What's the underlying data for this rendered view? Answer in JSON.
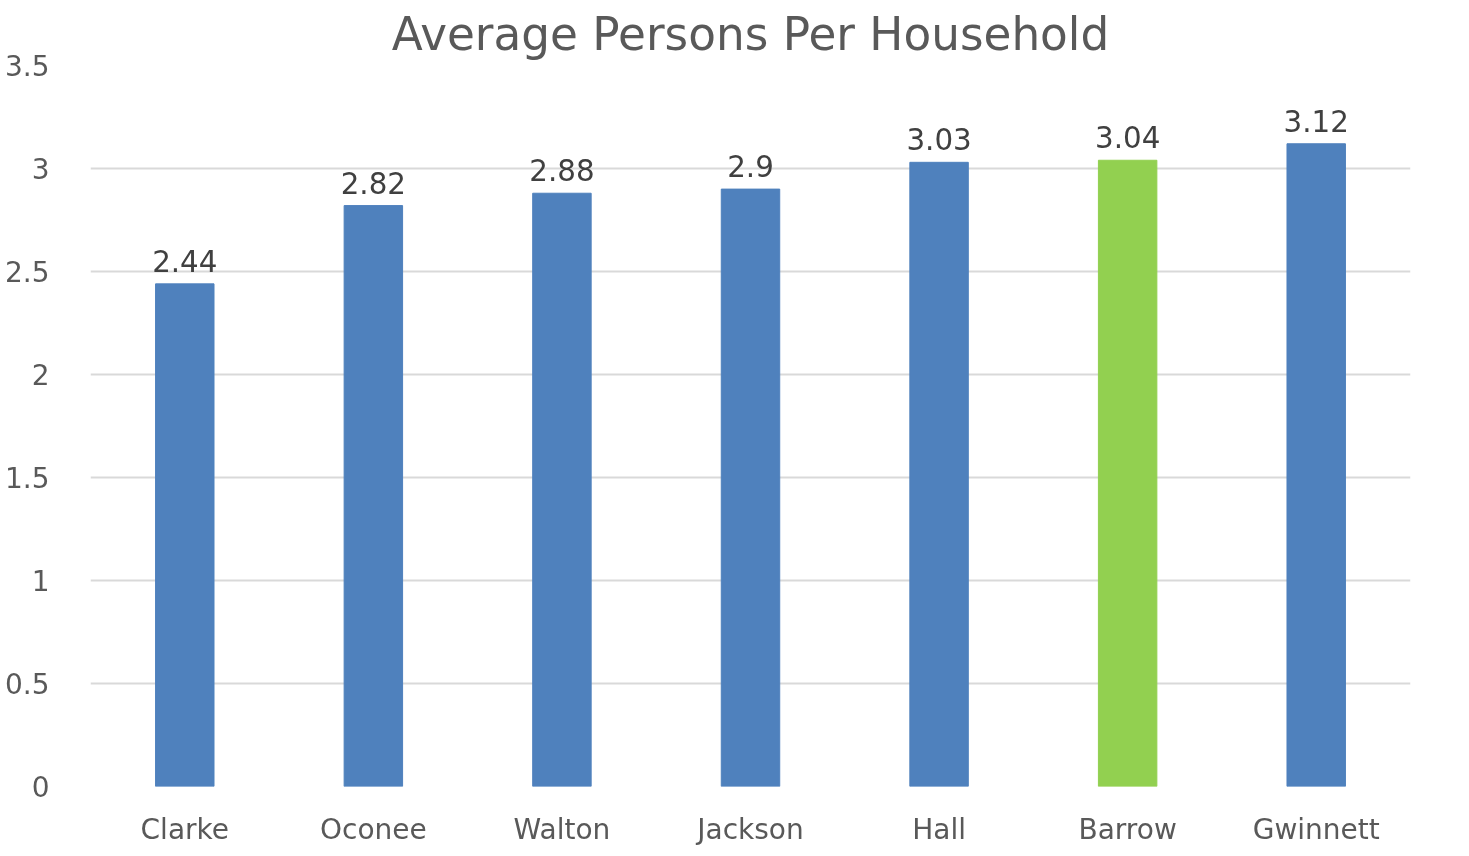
{
  "chart_data": {
    "type": "bar",
    "title": "Average Persons Per Household",
    "categories": [
      "Clarke",
      "Oconee",
      "Walton",
      "Jackson",
      "Hall",
      "Barrow",
      "Gwinnett"
    ],
    "values": [
      2.44,
      2.82,
      2.88,
      2.9,
      3.03,
      3.04,
      3.12
    ],
    "colors": [
      "#4f81bd",
      "#4f81bd",
      "#4f81bd",
      "#4f81bd",
      "#4f81bd",
      "#92d050",
      "#4f81bd"
    ],
    "ylim": [
      0,
      3.5
    ],
    "yticks": [
      0,
      0.5,
      1,
      1.5,
      2,
      2.5,
      3,
      3.5
    ],
    "grid": "y",
    "data_labels": true
  }
}
